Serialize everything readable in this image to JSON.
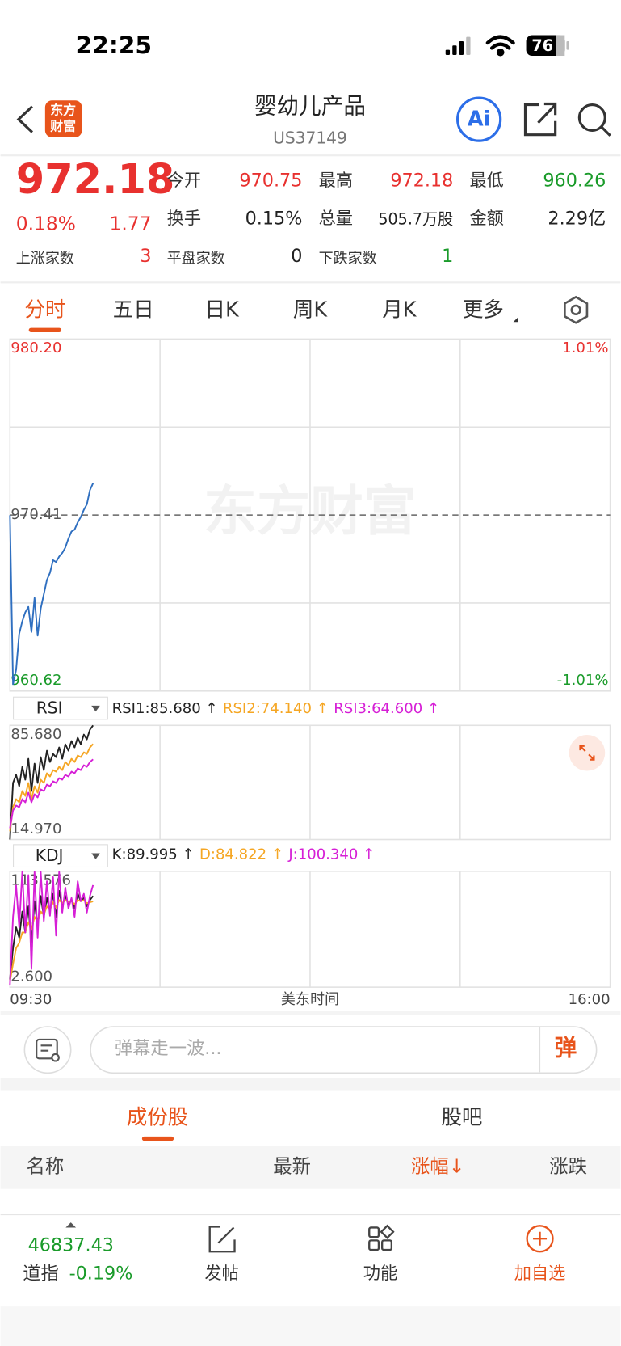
{
  "status_bar": {
    "time": "22:25",
    "battery": "76"
  },
  "header": {
    "logo": [
      "东方",
      "财富"
    ],
    "title": "婴幼儿产品",
    "code": "US37149",
    "ai": "Ai"
  },
  "quote": {
    "price": "972.18",
    "change_pct": "0.18%",
    "change": "1.77",
    "cells": [
      {
        "label": "今开",
        "value": "970.75"
      },
      {
        "label": "最高",
        "value": "972.18"
      },
      {
        "label": "最低",
        "value": "960.26"
      },
      {
        "label": "换手",
        "value": "0.15%"
      },
      {
        "label": "总量",
        "value": "505.7万股"
      },
      {
        "label": "金额",
        "value": "2.29亿"
      },
      {
        "label": "上涨家数",
        "value": "3"
      },
      {
        "label": "平盘家数",
        "value": "0"
      },
      {
        "label": "下跌家数",
        "value": "1"
      }
    ]
  },
  "tabs": [
    "分时",
    "五日",
    "日K",
    "周K",
    "月K",
    "更多"
  ],
  "chart_data": [
    {
      "type": "line",
      "watermark": "东方财富",
      "x_label": "美东时间",
      "xlim": [
        "09:30",
        "16:00"
      ],
      "xticks": [
        "09:30",
        "16:00"
      ],
      "x": [
        "09:30",
        "09:32",
        "09:34",
        "09:36",
        "09:38",
        "09:40",
        "09:42",
        "09:44",
        "09:46",
        "09:48",
        "09:50",
        "09:52",
        "09:54",
        "09:56",
        "09:58",
        "10:00",
        "10:02",
        "10:04",
        "10:06",
        "10:08",
        "10:10",
        "10:12",
        "10:14",
        "10:16",
        "10:18",
        "10:20",
        "10:22",
        "10:24"
      ],
      "values": [
        970.4,
        961.0,
        961.8,
        963.8,
        964.5,
        965.0,
        965.3,
        963.9,
        965.8,
        963.7,
        965.2,
        966.0,
        966.8,
        967.2,
        967.9,
        967.8,
        968.1,
        968.3,
        968.6,
        969.1,
        969.5,
        969.6,
        970.0,
        970.3,
        970.7,
        971.0,
        971.8,
        972.18
      ],
      "color": "#2f6fc0",
      "ylim": [
        960.62,
        980.2
      ],
      "yticks": [
        {
          "value": 980.2,
          "label": "980.20"
        },
        {
          "value": 970.41,
          "label": "970.41"
        },
        {
          "value": 960.62,
          "label": "960.62"
        }
      ],
      "y2lim": [
        -1.01,
        1.01
      ],
      "y2ticks": [
        {
          "value": 1.01,
          "label": "1.01%"
        },
        {
          "value": -1.01,
          "label": "-1.01%"
        }
      ]
    },
    {
      "type": "line",
      "indicator": "RSI",
      "ylim": [
        14.97,
        85.68
      ],
      "yticks": [
        {
          "value": 85.68,
          "label": "85.680"
        },
        {
          "value": 14.97,
          "label": "14.970"
        }
      ],
      "series": [
        {
          "name": "RSI1:85.680 ↑",
          "color": "#222222",
          "values": [
            14.97,
            50,
            55,
            48,
            60,
            52,
            65,
            45,
            62,
            50,
            66,
            58,
            70,
            63,
            68,
            66,
            72,
            65,
            74,
            70,
            76,
            72,
            78,
            74,
            80,
            77,
            83,
            85.68
          ]
        },
        {
          "name": "RSI2:74.140 ↑",
          "color": "#f5a623",
          "values": [
            20,
            35,
            40,
            38,
            45,
            42,
            50,
            40,
            48,
            44,
            52,
            50,
            56,
            54,
            58,
            57,
            60,
            58,
            63,
            61,
            65,
            63,
            67,
            66,
            69,
            68,
            72,
            74.14
          ]
        },
        {
          "name": "RSI3:64.600 ↑",
          "color": "#d61fd6",
          "values": [
            22,
            33,
            36,
            35,
            40,
            38,
            44,
            38,
            43,
            41,
            46,
            45,
            49,
            48,
            51,
            50,
            53,
            52,
            55,
            54,
            57,
            56,
            59,
            58,
            61,
            60,
            63,
            64.6
          ]
        }
      ]
    },
    {
      "type": "line",
      "indicator": "KDJ",
      "ylim": [
        2.6,
        113.576
      ],
      "yticks": [
        {
          "value": 113.576,
          "label": "113.576"
        },
        {
          "value": 2.6,
          "label": "2.600"
        }
      ],
      "series": [
        {
          "name": "K:89.995 ↑",
          "color": "#222222",
          "values": [
            10,
            40,
            60,
            50,
            75,
            55,
            80,
            45,
            85,
            60,
            90,
            70,
            88,
            75,
            92,
            70,
            95,
            80,
            90,
            82,
            86,
            78,
            92,
            85,
            88,
            80,
            86,
            89.995
          ]
        },
        {
          "name": "D:84.822 ↑",
          "color": "#f5a623",
          "values": [
            8,
            25,
            40,
            45,
            55,
            55,
            65,
            58,
            70,
            65,
            75,
            72,
            80,
            77,
            84,
            79,
            86,
            83,
            86,
            84,
            85,
            82,
            86,
            85,
            86,
            83,
            84,
            84.822
          ]
        },
        {
          "name": "J:100.340 ↑",
          "color": "#d61fd6",
          "values": [
            5,
            70,
            100,
            60,
            113.576,
            55,
            110,
            20,
            113,
            50,
            113,
            66,
            104,
            71,
            108,
            52,
            113,
            74,
            98,
            78,
            88,
            70,
            104,
            85,
            92,
            74,
            90,
            100.34
          ]
        }
      ]
    }
  ],
  "comment": {
    "placeholder": "弹幕走一波...",
    "button": "弹"
  },
  "list_tabs": [
    "成份股",
    "股吧"
  ],
  "table_header": [
    "名称",
    "最新",
    "涨幅↓",
    "涨跌"
  ],
  "bottom_bar": {
    "index_value": "46837.43",
    "index_name": "道指",
    "index_change": "-0.19%",
    "items": [
      "发帖",
      "功能",
      "加自选"
    ]
  }
}
